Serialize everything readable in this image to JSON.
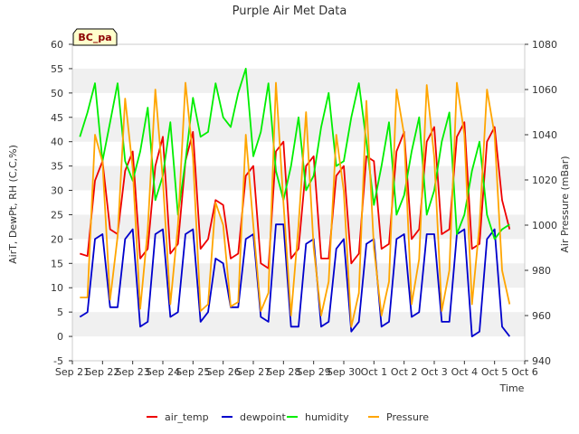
{
  "chart_data": {
    "type": "line",
    "title": "Purple Air Met Data",
    "badge": "BC_pa",
    "xlabel": "Time",
    "ylabel_left": "AirT, DewPt, RH (C,C,%)",
    "ylabel_right": "Air Pressure (mBar)",
    "x_ticks": [
      "Sep 21",
      "Sep 22",
      "Sep 23",
      "Sep 24",
      "Sep 25",
      "Sep 26",
      "Sep 27",
      "Sep 28",
      "Sep 29",
      "Sep 30",
      "Oct 1",
      "Oct 2",
      "Oct 3",
      "Oct 4",
      "Oct 5",
      "Oct 6"
    ],
    "y_left_ticks": [
      -5,
      0,
      5,
      10,
      15,
      20,
      25,
      30,
      35,
      40,
      45,
      50,
      55,
      60
    ],
    "y_right_ticks": [
      940,
      960,
      980,
      1000,
      1020,
      1040,
      1060,
      1080
    ],
    "ylim_left": [
      -5,
      60
    ],
    "ylim_right": [
      940,
      1080
    ],
    "grid": "horizontal bands",
    "legend_position": "bottom",
    "x_days": [
      0.25,
      0.5,
      0.75,
      1.0,
      1.25,
      1.5,
      1.75,
      2.0,
      2.25,
      2.5,
      2.75,
      3.0,
      3.25,
      3.5,
      3.75,
      4.0,
      4.25,
      4.5,
      4.75,
      5.0,
      5.25,
      5.5,
      5.75,
      6.0,
      6.25,
      6.5,
      6.75,
      7.0,
      7.25,
      7.5,
      7.75,
      8.0,
      8.25,
      8.5,
      8.75,
      9.0,
      9.25,
      9.5,
      9.75,
      10.0,
      10.25,
      10.5,
      10.75,
      11.0,
      11.25,
      11.5,
      11.75,
      12.0,
      12.25,
      12.5,
      12.75,
      13.0,
      13.25,
      13.5,
      13.75,
      14.0,
      14.25,
      14.5
    ],
    "series": [
      {
        "name": "air_temp",
        "color": "#ee0000",
        "axis": "left",
        "values": [
          17,
          16.5,
          32,
          36,
          22,
          21,
          34,
          38,
          16,
          18,
          35,
          41,
          17,
          19,
          36,
          42,
          18,
          20,
          28,
          27,
          16,
          17,
          33,
          35,
          15,
          14,
          38,
          40,
          16,
          18,
          35,
          37,
          16,
          16,
          33,
          35,
          15,
          17,
          37,
          36,
          18,
          19,
          38,
          42,
          20,
          22,
          40,
          43,
          21,
          22,
          41,
          44,
          18,
          19,
          40,
          43,
          28,
          22
        ]
      },
      {
        "name": "dewpoint",
        "color": "#0000cc",
        "axis": "left",
        "values": [
          4,
          5,
          20,
          21,
          6,
          6,
          20,
          22,
          2,
          3,
          21,
          22,
          4,
          5,
          21,
          22,
          3,
          5,
          16,
          15,
          6,
          6,
          20,
          21,
          4,
          3,
          23,
          23,
          2,
          2,
          19,
          20,
          2,
          3,
          18,
          20,
          1,
          3,
          19,
          20,
          2,
          3,
          20,
          21,
          4,
          5,
          21,
          21,
          3,
          3,
          21,
          22,
          0,
          1,
          20,
          22,
          2,
          0
        ]
      },
      {
        "name": "humidity",
        "color": "#00ee00",
        "axis": "left",
        "values": [
          41,
          46,
          52,
          36,
          44,
          52,
          36,
          32,
          38,
          47,
          28,
          33,
          44,
          25,
          36,
          49,
          41,
          42,
          52,
          45,
          43,
          50,
          55,
          37,
          42,
          52,
          34,
          28,
          35,
          45,
          30,
          33,
          43,
          50,
          35,
          36,
          45,
          52,
          40,
          27,
          35,
          44,
          25,
          29,
          38,
          45,
          25,
          30,
          40,
          46,
          21,
          25,
          34,
          40,
          25,
          20,
          22,
          23
        ]
      },
      {
        "name": "Pressure",
        "color": "#ffa500",
        "axis": "right",
        "values": [
          968,
          968,
          1040,
          1028,
          967,
          995,
          1056,
          1025,
          963,
          998,
          1060,
          1020,
          965,
          1000,
          1063,
          1030,
          962,
          965,
          1010,
          1000,
          964,
          966,
          1040,
          1000,
          962,
          970,
          1063,
          1010,
          960,
          1000,
          1050,
          990,
          960,
          975,
          1040,
          1015,
          955,
          970,
          1055,
          990,
          960,
          975,
          1060,
          1040,
          965,
          985,
          1062,
          1030,
          962,
          980,
          1063,
          1040,
          965,
          1000,
          1060,
          1040,
          980,
          965
        ]
      }
    ]
  }
}
